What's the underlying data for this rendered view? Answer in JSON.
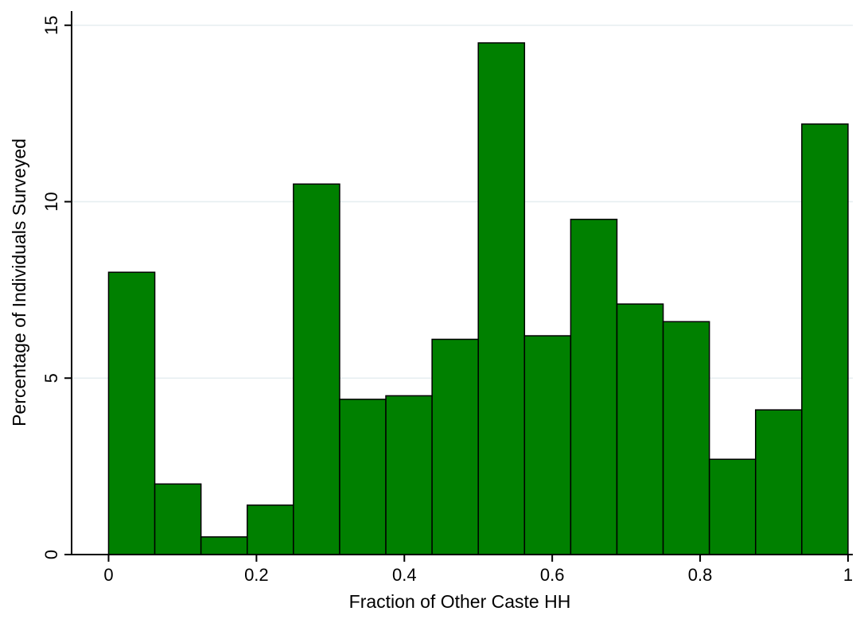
{
  "chart_data": {
    "type": "histogram",
    "x_label": "Fraction of Other Caste HH",
    "y_label": "Percentage of Individuals Surveyed",
    "bins": [
      0,
      0.0625,
      0.125,
      0.1875,
      0.25,
      0.3125,
      0.375,
      0.4375,
      0.5,
      0.5625,
      0.625,
      0.6875,
      0.75,
      0.8125,
      0.875,
      0.9375,
      1
    ],
    "values": [
      8.0,
      2.0,
      0.5,
      1.4,
      10.5,
      4.4,
      4.5,
      6.1,
      14.5,
      6.2,
      9.5,
      7.1,
      6.6,
      2.7,
      4.1,
      12.2
    ],
    "color": "#008000",
    "xlim": [
      -0.05,
      1.0065
    ],
    "ylim": [
      0,
      15.4
    ],
    "xticks": [
      0,
      0.2,
      0.4,
      0.6,
      0.8,
      1
    ],
    "yticks": [
      0,
      5,
      10,
      15
    ],
    "grid": true
  }
}
